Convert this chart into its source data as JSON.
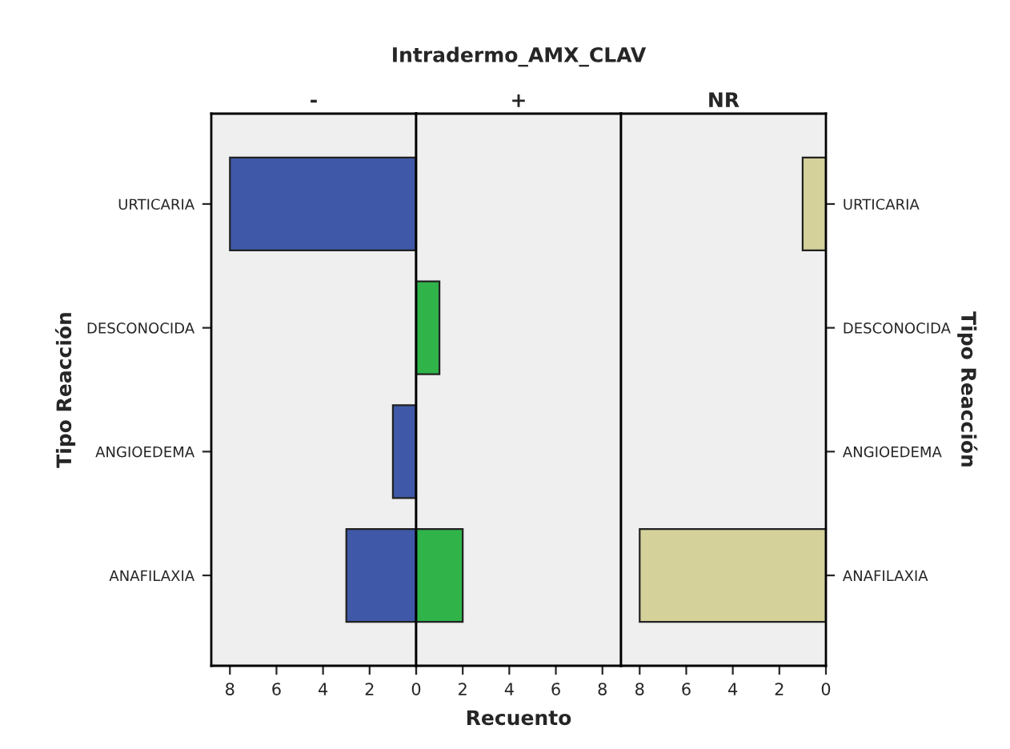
{
  "chart_data": [
    {
      "type": "bar",
      "orientation": "horizontal",
      "subtitle": "-",
      "ylabel": "Tipo Reacción",
      "categories": [
        "URTICARIA",
        "DESCONOCIDA",
        "ANGIOEDEMA",
        "ANAFILAXIA"
      ],
      "series": [
        {
          "color": "#3f58a8",
          "values": [
            8,
            null,
            1,
            3
          ]
        }
      ],
      "xlim": [
        8.8,
        0
      ],
      "xticks": [
        8,
        6,
        4,
        2,
        0
      ],
      "grid": false
    },
    {
      "type": "bar",
      "orientation": "horizontal",
      "title": "Intradermo_AMX_CLAV",
      "subtitle": "+",
      "xlabel": "Recuento",
      "categories": [
        null,
        null,
        null,
        null
      ],
      "series": [
        {
          "color": "#30b44a",
          "values": [
            null,
            1,
            null,
            2
          ]
        }
      ],
      "xlim": [
        0,
        8.8
      ],
      "xticks": [
        {
          "value": 0,
          "label": null
        },
        2,
        4,
        6,
        8
      ],
      "tick_labels": "x",
      "grid": false
    },
    {
      "type": "bar",
      "orientation": "horizontal",
      "subtitle": "NR",
      "ylabel": "Tipo Reacción",
      "categories": [
        "URTICARIA",
        "DESCONOCIDA",
        "ANGIOEDEMA",
        "ANAFILAXIA"
      ],
      "series": [
        {
          "color": "#d4d19a",
          "values": [
            1,
            null,
            null,
            8
          ]
        }
      ],
      "xlim": [
        8.8,
        0
      ],
      "xticks": [
        8,
        6,
        4,
        2,
        0
      ],
      "grid": false
    }
  ]
}
